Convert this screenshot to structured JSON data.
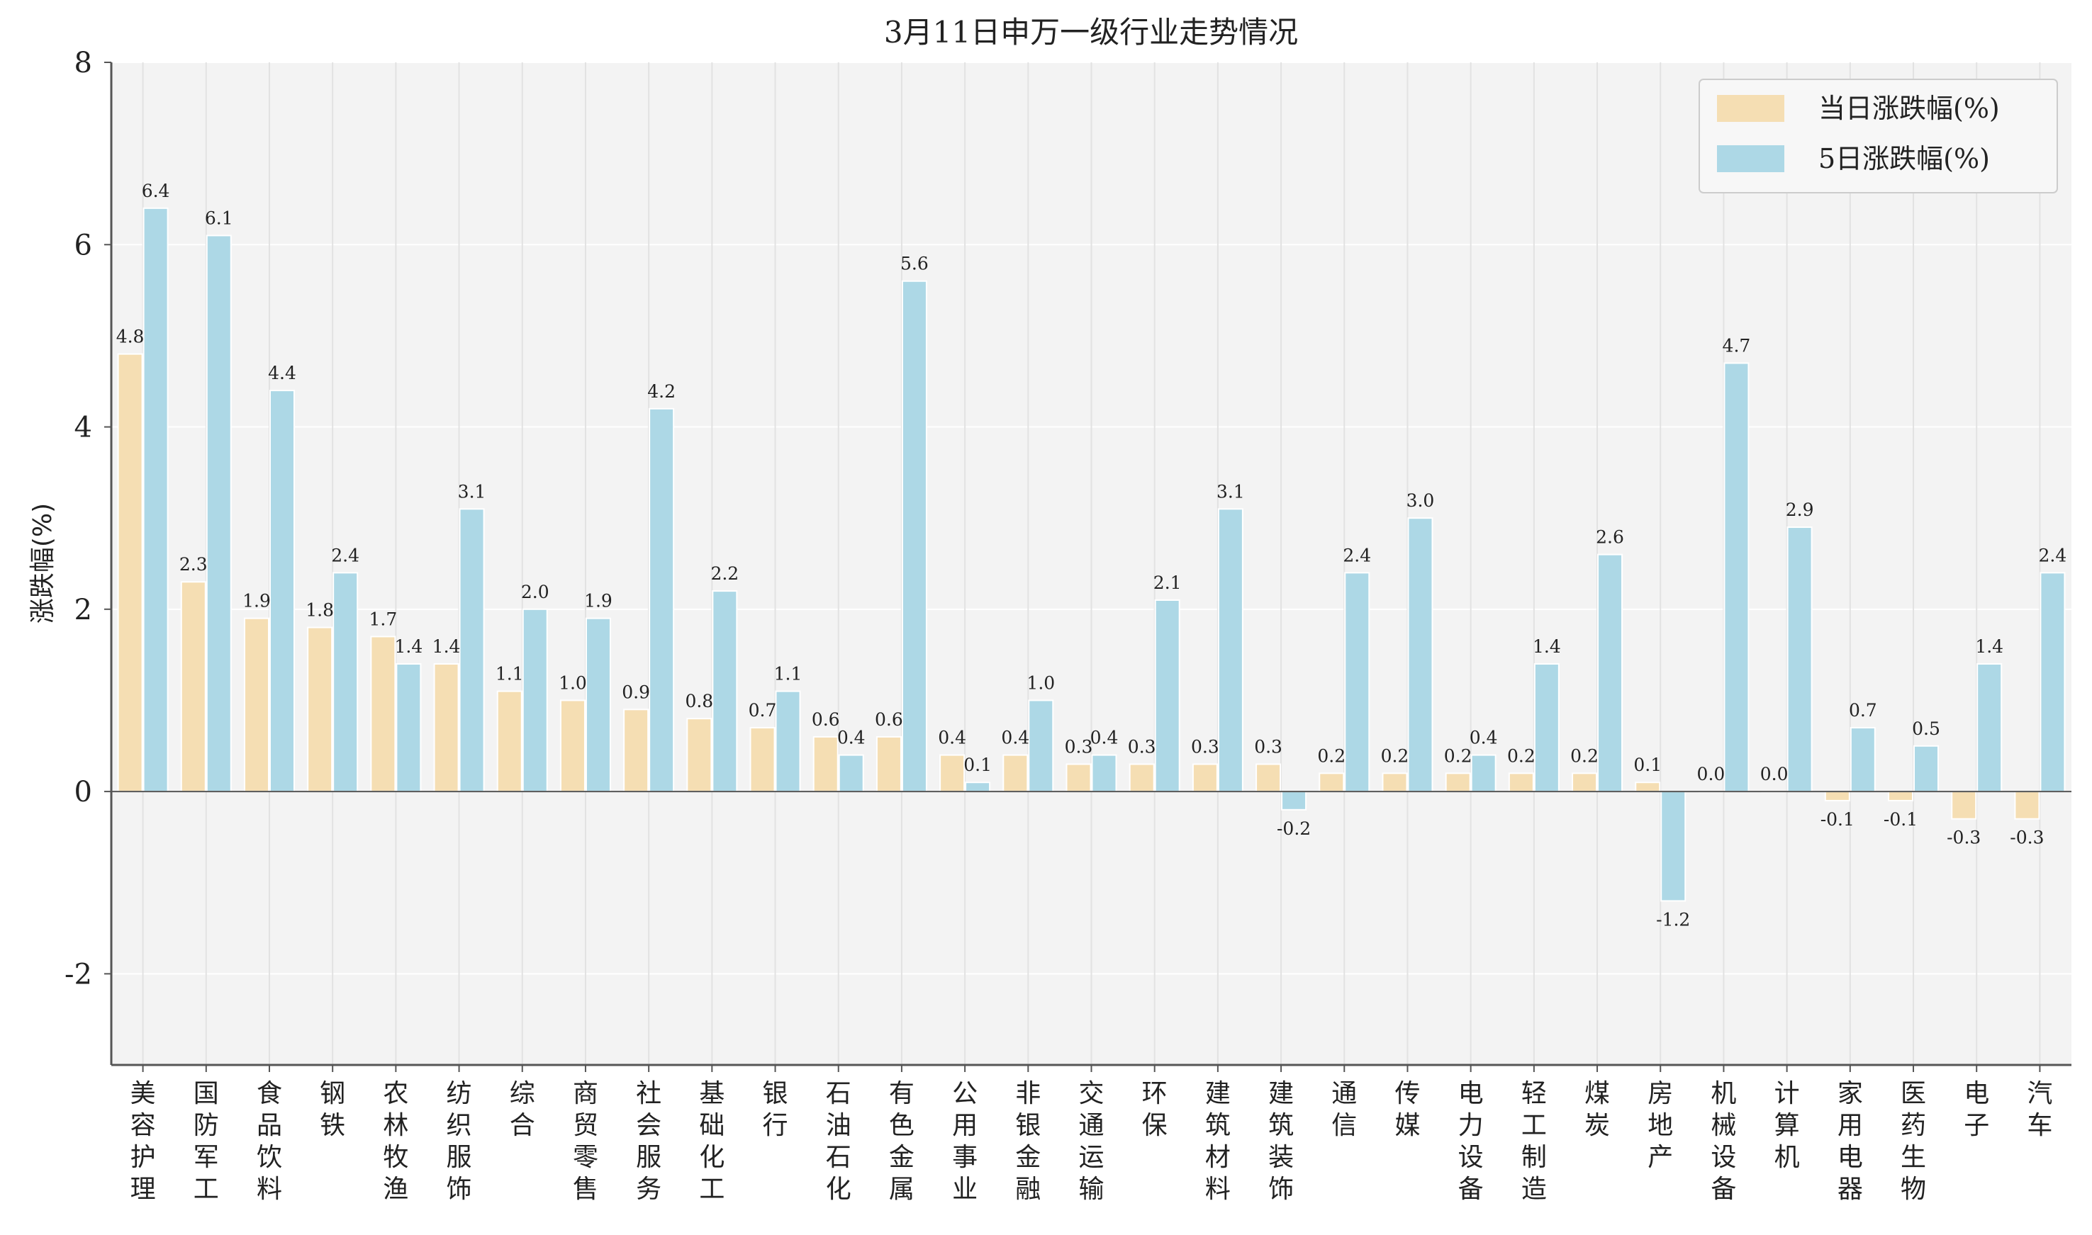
{
  "chart_data": {
    "type": "bar",
    "title": "3月11日申万一级行业走势情况",
    "ylabel": "涨跌幅(%)",
    "ylim": [
      -3,
      8
    ],
    "yticks": [
      -2,
      0,
      2,
      4,
      6,
      8
    ],
    "grid": true,
    "legend_position": "top-right",
    "categories": [
      "美容护理",
      "国防军工",
      "食品饮料",
      "钢铁",
      "农林牧渔",
      "纺织服饰",
      "综合",
      "商贸零售",
      "社会服务",
      "基础化工",
      "银行",
      "石油石化",
      "有色金属",
      "公用事业",
      "非银金融",
      "交通运输",
      "环保",
      "建筑材料",
      "建筑装饰",
      "通信",
      "传媒",
      "电力设备",
      "轻工制造",
      "煤炭",
      "房地产",
      "机械设备",
      "计算机",
      "家用电器",
      "医药生物",
      "电子",
      "汽车"
    ],
    "series": [
      {
        "name": "当日涨跌幅(%)",
        "color": "#f5deb3",
        "values": [
          4.8,
          2.3,
          1.9,
          1.8,
          1.7,
          1.4,
          1.1,
          1.0,
          0.9,
          0.8,
          0.7,
          0.6,
          0.6,
          0.4,
          0.4,
          0.3,
          0.3,
          0.3,
          0.3,
          0.2,
          0.2,
          0.2,
          0.2,
          0.2,
          0.1,
          0.0,
          0.0,
          -0.1,
          -0.1,
          -0.3,
          -0.3
        ],
        "labels": [
          "4.8",
          "2.3",
          "1.9",
          "1.8",
          "1.7",
          "1.4",
          "1.1",
          "1.0",
          "0.9",
          "0.8",
          "0.7",
          "0.6",
          "0.6",
          "0.4",
          "0.4",
          "0.3",
          "0.3",
          "0.3",
          "0.3",
          "0.2",
          "0.2",
          "0.2",
          "0.2",
          "0.2",
          "0.1",
          "0.0",
          "0.0",
          "-0.1",
          "-0.1",
          "-0.3",
          "-0.3"
        ]
      },
      {
        "name": "5日涨跌幅(%)",
        "color": "#add8e6",
        "values": [
          6.4,
          6.1,
          4.4,
          2.4,
          1.4,
          3.1,
          2.0,
          1.9,
          4.2,
          2.2,
          1.1,
          0.4,
          5.6,
          0.1,
          1.0,
          0.4,
          2.1,
          3.1,
          -0.2,
          2.4,
          3.0,
          0.4,
          1.4,
          2.6,
          -1.2,
          4.7,
          2.9,
          0.7,
          0.5,
          1.4,
          2.4
        ],
        "labels": [
          "6.4",
          "6.1",
          "4.4",
          "2.4",
          "1.4",
          "3.1",
          "2.0",
          "1.9",
          "4.2",
          "2.2",
          "1.1",
          "0.4",
          "5.6",
          "0.1",
          "1.0",
          "0.4",
          "2.1",
          "3.1",
          "-0.2",
          "2.4",
          "3.0",
          "0.4",
          "1.4",
          "2.6",
          "-1.2",
          "4.7",
          "2.9",
          "0.7",
          "0.5",
          "1.4",
          "2.4"
        ]
      }
    ]
  }
}
